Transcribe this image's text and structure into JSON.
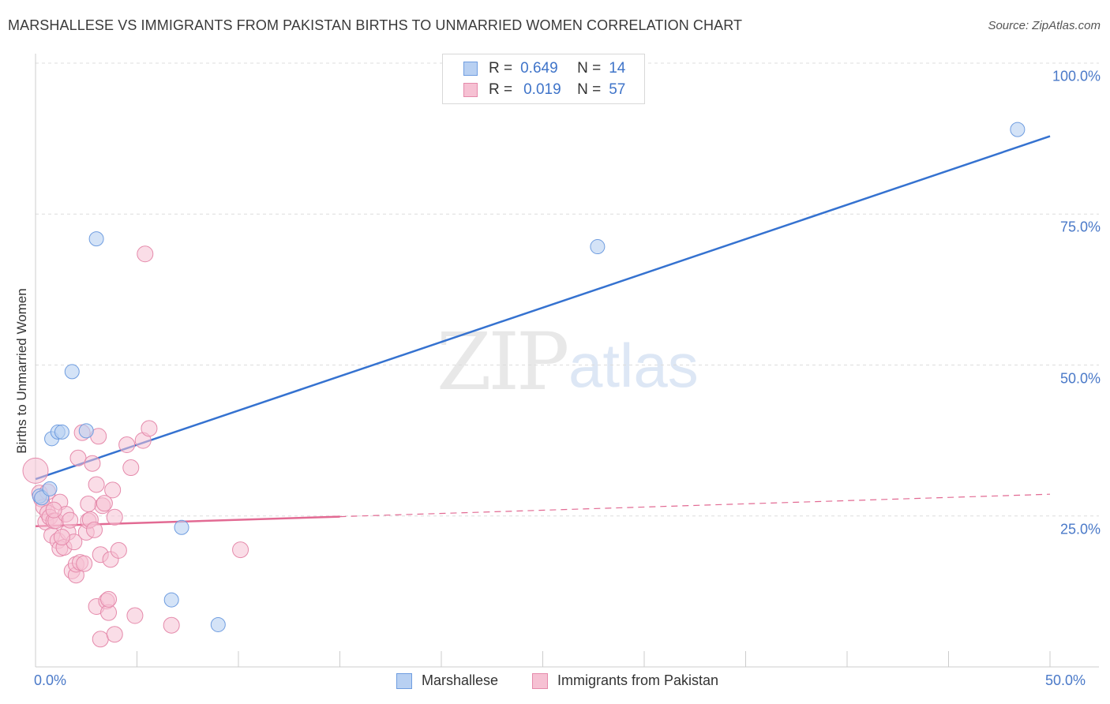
{
  "title": "MARSHALLESE VS IMMIGRANTS FROM PAKISTAN BIRTHS TO UNMARRIED WOMEN CORRELATION CHART",
  "source": "Source: ZipAtlas.com",
  "watermark": {
    "zip": "ZIP",
    "atlas": "atlas"
  },
  "legend": {
    "r_label": "R =",
    "n_label": "N =",
    "series": [
      {
        "r": "0.649",
        "n": "14"
      },
      {
        "r": "0.019",
        "n": "57"
      }
    ]
  },
  "colors": {
    "marshallese_fill": "#b8d0f2",
    "marshallese_stroke": "#6f9de0",
    "marshallese_line": "#3572d0",
    "pakistan_fill": "#f6c1d3",
    "pakistan_stroke": "#e58aab",
    "pakistan_line": "#e26a93"
  },
  "chart_data": {
    "type": "scatter",
    "title": "MARSHALLESE VS IMMIGRANTS FROM PAKISTAN BIRTHS TO UNMARRIED WOMEN CORRELATION CHART",
    "xlabel": "",
    "ylabel": "Births to Unmarried Women",
    "xlim": [
      0,
      50
    ],
    "ylim": [
      0,
      100
    ],
    "x_tick_labels": [
      "0.0%",
      "50.0%"
    ],
    "y_ticks": [
      25,
      50,
      75,
      100
    ],
    "y_tick_labels": [
      "25.0%",
      "50.0%",
      "75.0%",
      "100.0%"
    ],
    "grid": true,
    "legend_position": "bottom",
    "series": [
      {
        "name": "Marshallese",
        "r": 0.649,
        "n": 14,
        "trend": {
          "x": [
            0,
            50
          ],
          "y": [
            31.1,
            87.9
          ],
          "style": "solid"
        },
        "points": [
          {
            "x": 0.2,
            "y": 28.3
          },
          {
            "x": 0.3,
            "y": 28.0
          },
          {
            "x": 0.7,
            "y": 29.5
          },
          {
            "x": 0.8,
            "y": 37.8
          },
          {
            "x": 1.1,
            "y": 38.9
          },
          {
            "x": 1.3,
            "y": 38.9
          },
          {
            "x": 1.8,
            "y": 48.9
          },
          {
            "x": 2.5,
            "y": 39.1
          },
          {
            "x": 3.0,
            "y": 70.9
          },
          {
            "x": 7.2,
            "y": 23.1
          },
          {
            "x": 6.7,
            "y": 11.1
          },
          {
            "x": 9.0,
            "y": 7.0
          },
          {
            "x": 27.7,
            "y": 69.6
          },
          {
            "x": 48.4,
            "y": 89.0
          }
        ]
      },
      {
        "name": "Immigrants from Pakistan",
        "r": 0.019,
        "n": 57,
        "trend": {
          "x": [
            0,
            50
          ],
          "y": [
            23.3,
            28.6
          ],
          "style": "solid-then-dashed",
          "solid_until_x": 15
        },
        "points": [
          {
            "x": 0.0,
            "y": 32.5
          },
          {
            "x": 0.2,
            "y": 28.8
          },
          {
            "x": 0.3,
            "y": 27.8
          },
          {
            "x": 0.4,
            "y": 26.5
          },
          {
            "x": 0.5,
            "y": 24.0
          },
          {
            "x": 0.6,
            "y": 25.5
          },
          {
            "x": 0.7,
            "y": 24.8
          },
          {
            "x": 0.8,
            "y": 21.8
          },
          {
            "x": 0.9,
            "y": 24.2
          },
          {
            "x": 1.0,
            "y": 24.2
          },
          {
            "x": 1.1,
            "y": 20.9
          },
          {
            "x": 1.2,
            "y": 27.3
          },
          {
            "x": 1.2,
            "y": 19.6
          },
          {
            "x": 1.4,
            "y": 19.8
          },
          {
            "x": 1.5,
            "y": 25.3
          },
          {
            "x": 1.6,
            "y": 22.3
          },
          {
            "x": 1.7,
            "y": 24.3
          },
          {
            "x": 1.8,
            "y": 15.9
          },
          {
            "x": 1.9,
            "y": 20.7
          },
          {
            "x": 2.0,
            "y": 15.2
          },
          {
            "x": 2.0,
            "y": 17.0
          },
          {
            "x": 2.1,
            "y": 34.6
          },
          {
            "x": 2.2,
            "y": 17.3
          },
          {
            "x": 2.3,
            "y": 38.8
          },
          {
            "x": 2.4,
            "y": 17.1
          },
          {
            "x": 2.5,
            "y": 22.3
          },
          {
            "x": 2.6,
            "y": 24.2
          },
          {
            "x": 2.7,
            "y": 24.4
          },
          {
            "x": 2.8,
            "y": 33.7
          },
          {
            "x": 2.9,
            "y": 22.7
          },
          {
            "x": 3.0,
            "y": 30.2
          },
          {
            "x": 3.0,
            "y": 10.0
          },
          {
            "x": 3.1,
            "y": 38.2
          },
          {
            "x": 3.2,
            "y": 18.6
          },
          {
            "x": 3.2,
            "y": 4.6
          },
          {
            "x": 3.3,
            "y": 26.7
          },
          {
            "x": 3.4,
            "y": 27.1
          },
          {
            "x": 3.5,
            "y": 10.9
          },
          {
            "x": 3.6,
            "y": 9.0
          },
          {
            "x": 3.6,
            "y": 11.2
          },
          {
            "x": 3.7,
            "y": 17.8
          },
          {
            "x": 3.8,
            "y": 29.3
          },
          {
            "x": 3.9,
            "y": 5.4
          },
          {
            "x": 3.9,
            "y": 24.8
          },
          {
            "x": 4.1,
            "y": 19.3
          },
          {
            "x": 4.5,
            "y": 36.8
          },
          {
            "x": 4.7,
            "y": 33.0
          },
          {
            "x": 4.9,
            "y": 8.5
          },
          {
            "x": 5.3,
            "y": 37.5
          },
          {
            "x": 5.6,
            "y": 39.5
          },
          {
            "x": 5.4,
            "y": 68.4
          },
          {
            "x": 6.7,
            "y": 6.9
          },
          {
            "x": 10.1,
            "y": 19.4
          },
          {
            "x": 0.6,
            "y": 29.0
          },
          {
            "x": 0.9,
            "y": 26.0
          },
          {
            "x": 1.3,
            "y": 21.5
          },
          {
            "x": 2.6,
            "y": 27.0
          }
        ]
      }
    ]
  },
  "bottom_legend": [
    "Marshallese",
    "Immigrants from Pakistan"
  ]
}
